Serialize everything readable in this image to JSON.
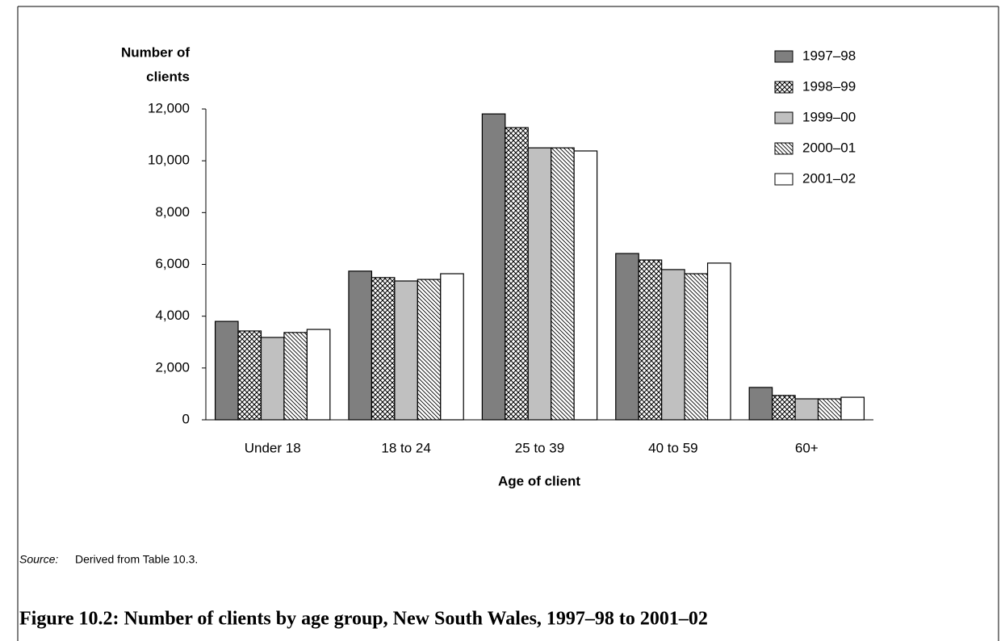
{
  "chart_data": {
    "type": "bar",
    "ylabel": [
      "Number of",
      "clients"
    ],
    "xlabel": "Age of client",
    "categories": [
      "Under 18",
      "18 to 24",
      "25 to 39",
      "40 to 59",
      "60+"
    ],
    "series": [
      {
        "name": "1997–98",
        "color": "#7f7f7f",
        "values": [
          3800,
          5740,
          11810,
          6420,
          1250
        ]
      },
      {
        "name": "1998–99",
        "color": "#ffffff",
        "hatch": "crosshatch",
        "values": [
          3430,
          5490,
          11280,
          6170,
          940
        ]
      },
      {
        "name": "1999–00",
        "color": "#c0c0c0",
        "values": [
          3180,
          5360,
          10500,
          5800,
          810
        ]
      },
      {
        "name": "2000–01",
        "color": "#ffffff",
        "hatch": "diagonal",
        "values": [
          3370,
          5420,
          10500,
          5640,
          810
        ]
      },
      {
        "name": "2001–02",
        "color": "#ffffff",
        "values": [
          3490,
          5640,
          10380,
          6050,
          870
        ]
      }
    ],
    "ylim": [
      0,
      12000
    ],
    "yticks": [
      0,
      {
        "value": 2000,
        "label": "2,000"
      },
      {
        "value": 4000,
        "label": "4,000"
      },
      {
        "value": 6000,
        "label": "6,000"
      },
      {
        "value": 8000,
        "label": "8,000"
      },
      {
        "value": 10000,
        "label": "10,000"
      },
      {
        "value": 12000,
        "label": "12,000"
      }
    ],
    "grid": false,
    "legend": "top-right"
  },
  "source_label": "Source:",
  "source_text": "Derived from Table 10.3.",
  "caption": "Figure 10.2: Number of clients by age group, New South Wales, 1997–98 to 2001–02"
}
